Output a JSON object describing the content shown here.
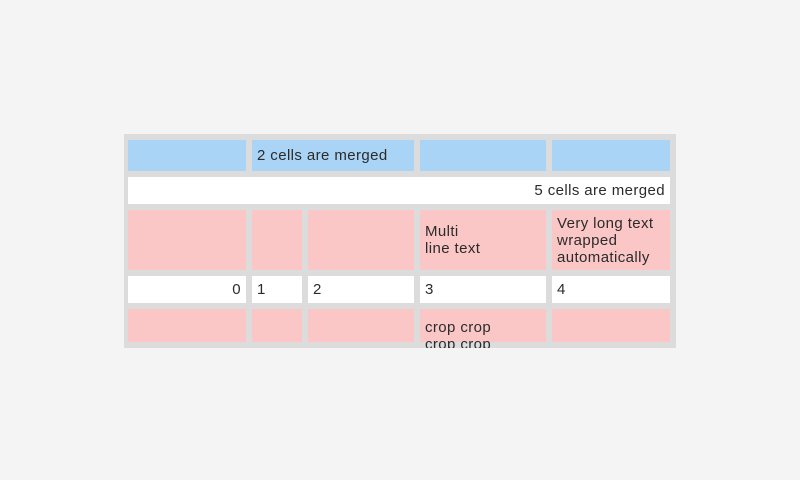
{
  "page": {
    "background_color": "#f4f4f4"
  },
  "table_widget": {
    "background_color": "#dcdcdc",
    "text_color": "#2b2b2b",
    "cell_colors": {
      "blue": "#a9d4f5",
      "white": "#ffffff",
      "pink": "#fac7c6"
    },
    "rows": {
      "header_row": {
        "merged_2cols_label": "2 cells are merged"
      },
      "full_merge_row": {
        "merged_5cols_label": "5 cells are merged"
      },
      "pink_row": {
        "multi_line_label": "Multi\nline text",
        "wrapped_label": "Very long text wrapped automatically"
      },
      "number_row": {
        "col0": "0",
        "col1": "1",
        "col2": "2",
        "col3": "3",
        "col4": "4"
      },
      "cropped_row": {
        "crop_label": "crop crop crop crop"
      }
    }
  }
}
